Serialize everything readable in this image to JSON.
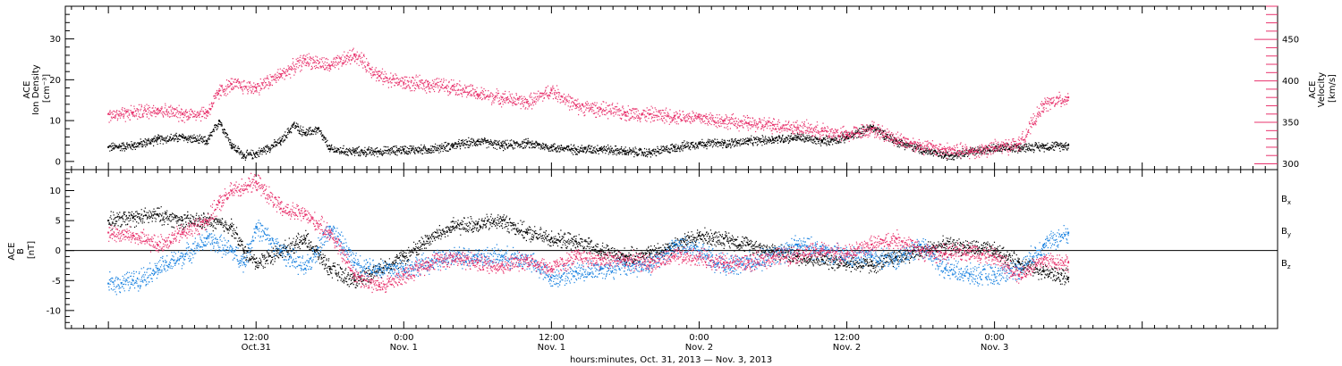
{
  "chart_data": [
    {
      "type": "scatter",
      "panel": "top",
      "left_axis": {
        "label_lines": [
          "ACE",
          "Ion Density",
          "[cm⁻³]"
        ],
        "ylim": [
          -2,
          38
        ],
        "ticks": [
          0,
          10,
          20,
          30
        ],
        "tick_labels": [
          "0",
          "10",
          "20",
          "30"
        ],
        "color": "#000000"
      },
      "right_axis": {
        "label_lines": [
          "ACE",
          "Velocity",
          "[km/s]"
        ],
        "ylim": [
          293,
          490
        ],
        "ticks": [
          300,
          350,
          400,
          450
        ],
        "tick_labels": [
          "300",
          "350",
          "400",
          "450"
        ],
        "color": "#e8336d"
      },
      "series": [
        {
          "axis": "left",
          "color": "#000000",
          "x": [
            0,
            2,
            4,
            6,
            8,
            9,
            10,
            11,
            12,
            14,
            15,
            16,
            17,
            18,
            20,
            22,
            24,
            26,
            28,
            30,
            32,
            34,
            36,
            38,
            40,
            42,
            44,
            46,
            48,
            50,
            52,
            54,
            56,
            58,
            60,
            62,
            64,
            66,
            68,
            70,
            72,
            74,
            76,
            78
          ],
          "y": [
            3.5,
            4,
            5.5,
            6,
            5,
            10,
            4,
            1.5,
            2,
            5,
            9,
            7,
            8,
            3,
            2.5,
            2.5,
            3,
            3,
            4,
            5,
            4,
            4.5,
            3.5,
            3,
            3.2,
            2.5,
            2.2,
            3.5,
            4.5,
            4.5,
            5,
            5.5,
            6,
            5,
            6,
            8.5,
            5,
            3,
            1.5,
            2.5,
            3.2,
            3.5,
            3.8,
            4
          ]
        },
        {
          "axis": "right",
          "color": "#e8336d",
          "x": [
            0,
            2,
            4,
            6,
            8,
            9,
            10,
            12,
            14,
            16,
            18,
            20,
            22,
            24,
            26,
            28,
            30,
            32,
            34,
            36,
            38,
            40,
            42,
            44,
            46,
            48,
            50,
            52,
            54,
            56,
            58,
            60,
            62,
            64,
            66,
            68,
            70,
            72,
            74,
            76,
            78
          ],
          "y": [
            360,
            362,
            366,
            360,
            362,
            388,
            396,
            392,
            408,
            426,
            418,
            432,
            406,
            398,
            396,
            394,
            384,
            380,
            374,
            389,
            370,
            366,
            362,
            360,
            358,
            356,
            352,
            349,
            347,
            344,
            340,
            335,
            343,
            330,
            322,
            317,
            315,
            320,
            324,
            372,
            380
          ]
        }
      ]
    },
    {
      "type": "scatter",
      "panel": "bottom",
      "left_axis": {
        "label_lines": [
          "ACE",
          "B",
          "[nT]"
        ],
        "ylim": [
          -13,
          13.5
        ],
        "ticks": [
          -10,
          -5,
          0,
          5,
          10
        ],
        "tick_labels": [
          "-10",
          "-5",
          "0",
          "5",
          "10"
        ],
        "color": "#000000"
      },
      "zero_line": true,
      "series": [
        {
          "name_base": "B",
          "name_sub": "x",
          "color": "#000000",
          "x": [
            0,
            2,
            4,
            6,
            8,
            10,
            11,
            12,
            14,
            16,
            18,
            20,
            22,
            24,
            26,
            28,
            30,
            32,
            34,
            36,
            38,
            40,
            42,
            44,
            46,
            48,
            50,
            52,
            54,
            56,
            58,
            60,
            62,
            64,
            66,
            68,
            70,
            72,
            74,
            76,
            78
          ],
          "y": [
            5,
            5.5,
            6,
            5,
            5,
            4,
            0,
            -2,
            0,
            2,
            -3,
            -5,
            -3,
            -1,
            2,
            4,
            4.5,
            5,
            3,
            2,
            1.5,
            0,
            -1,
            -0.5,
            1,
            2.5,
            2,
            1,
            0,
            -1,
            -1.5,
            -2,
            -2.5,
            -1,
            0,
            1,
            0.5,
            0,
            -2,
            -3.5,
            -4.5
          ]
        },
        {
          "name_base": "B",
          "name_sub": "y",
          "color": "#1a82e0",
          "x": [
            0,
            2,
            4,
            6,
            8,
            10,
            11,
            12,
            14,
            16,
            18,
            20,
            22,
            24,
            26,
            28,
            30,
            32,
            34,
            36,
            38,
            40,
            42,
            44,
            46,
            48,
            50,
            52,
            54,
            56,
            58,
            60,
            62,
            64,
            66,
            68,
            70,
            72,
            74,
            76,
            78
          ],
          "y": [
            -5.5,
            -5,
            -3,
            -1,
            2,
            0,
            -2,
            4,
            0,
            -3,
            4,
            -2,
            -3,
            -3,
            -2,
            -1,
            -1,
            -1,
            -1.5,
            -4.5,
            -3.5,
            -3,
            -2.5,
            -2.5,
            1,
            0,
            -2.5,
            -2,
            -1,
            1,
            0,
            -1,
            -1,
            -1.5,
            1,
            -3,
            -4,
            -4,
            -3,
            1,
            3
          ]
        },
        {
          "name_base": "B",
          "name_sub": "z",
          "color": "#e8336d",
          "x": [
            0,
            2,
            4,
            6,
            8,
            9,
            10,
            12,
            14,
            16,
            18,
            20,
            22,
            24,
            26,
            28,
            30,
            32,
            34,
            36,
            38,
            40,
            42,
            44,
            46,
            48,
            50,
            52,
            54,
            56,
            58,
            60,
            62,
            64,
            66,
            68,
            70,
            72,
            74,
            76,
            78
          ],
          "y": [
            3,
            2.5,
            1,
            3,
            5,
            8,
            10,
            11.5,
            7,
            6,
            3,
            -4,
            -6,
            -4,
            -2,
            -1,
            -2,
            -2.5,
            -1.5,
            -3,
            -1,
            -1.5,
            -1.5,
            -2,
            -1,
            -1,
            -2,
            -2,
            -1,
            -0.5,
            0,
            -0.5,
            1,
            2,
            0,
            -0.5,
            0,
            -1,
            -4,
            -1.5,
            -2
          ]
        }
      ]
    }
  ],
  "x_axis": {
    "xlim": [
      -3.5,
      95
    ],
    "major_ticks": [
      {
        "x": 12,
        "line1": "12:00",
        "line2": "Oct.31"
      },
      {
        "x": 24,
        "line1": "0:00",
        "line2": "Nov. 1"
      },
      {
        "x": 36,
        "line1": "12:00",
        "line2": "Nov. 1"
      },
      {
        "x": 48,
        "line1": "0:00",
        "line2": "Nov. 2"
      },
      {
        "x": 60,
        "line1": "12:00",
        "line2": "Nov. 2"
      },
      {
        "x": 72,
        "line1": "0:00",
        "line2": "Nov. 3"
      }
    ],
    "title": "hours:minutes, Oct. 31, 2013 — Nov.  3, 2013"
  }
}
